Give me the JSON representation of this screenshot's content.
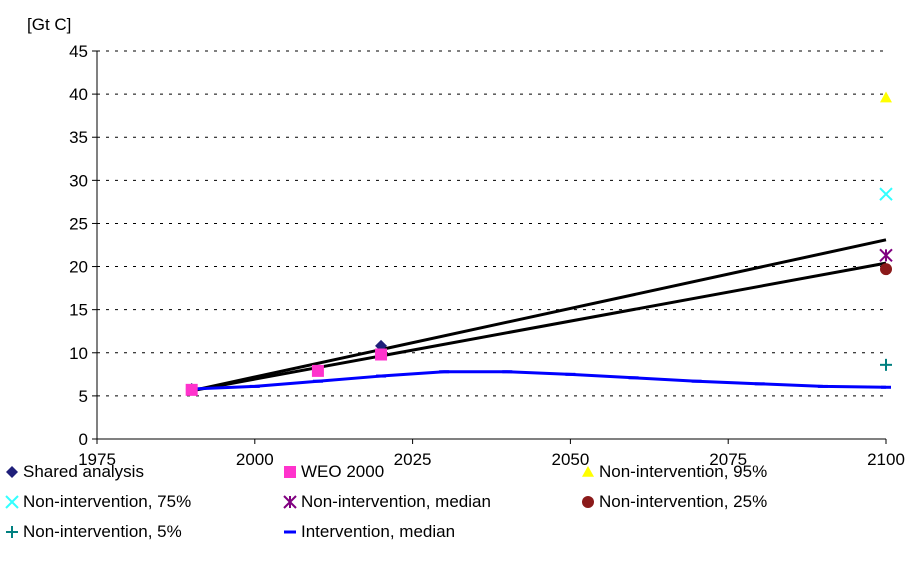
{
  "chart_data": {
    "type": "scatter",
    "ylabel": "[Gt C]",
    "xlim": [
      1975,
      2100
    ],
    "ylim": [
      0,
      45
    ],
    "x_ticks": [
      1975,
      2000,
      2025,
      2050,
      2075,
      2100
    ],
    "y_ticks": [
      0,
      5,
      10,
      15,
      20,
      25,
      30,
      35,
      40,
      45
    ],
    "grid": "horizontal dashed",
    "legend_position": "bottom",
    "series": [
      {
        "name": "Shared analysis",
        "kind": "markers",
        "marker": "diamond",
        "color": "#1f1f7a",
        "points": [
          [
            1990,
            5.8
          ],
          [
            2020,
            10.8
          ]
        ]
      },
      {
        "name": "WEO 2000",
        "kind": "markers",
        "marker": "square",
        "color": "#ff33cc",
        "points": [
          [
            1990,
            5.7
          ],
          [
            2010,
            7.9
          ],
          [
            2020,
            9.8
          ]
        ]
      },
      {
        "name": "Non-intervention, 95%",
        "kind": "markers",
        "marker": "triangle",
        "color": "#ffff00",
        "points": [
          [
            2100,
            39.6
          ]
        ]
      },
      {
        "name": "Non-intervention, 75%",
        "kind": "markers",
        "marker": "x",
        "color": "#33ffff",
        "points": [
          [
            2100,
            28.4
          ]
        ]
      },
      {
        "name": "Non-intervention, median",
        "kind": "markers",
        "marker": "asterisk",
        "color": "#800080",
        "points": [
          [
            2100,
            21.3
          ]
        ]
      },
      {
        "name": "Non-intervention, 25%",
        "kind": "markers",
        "marker": "circle",
        "color": "#8b1a1a",
        "points": [
          [
            2100,
            19.7
          ]
        ]
      },
      {
        "name": "Non-intervention, 5%",
        "kind": "markers",
        "marker": "plus",
        "color": "#008080",
        "points": [
          [
            2100,
            8.6
          ]
        ]
      },
      {
        "name": "Intervention, median",
        "kind": "line+dash",
        "marker": "dash",
        "color": "#0000ff",
        "points": [
          [
            1990,
            5.8
          ],
          [
            2000,
            6.1
          ],
          [
            2010,
            6.7
          ],
          [
            2020,
            7.3
          ],
          [
            2030,
            7.8
          ],
          [
            2040,
            7.8
          ],
          [
            2050,
            7.5
          ],
          [
            2060,
            7.1
          ],
          [
            2070,
            6.7
          ],
          [
            2080,
            6.4
          ],
          [
            2090,
            6.1
          ],
          [
            2100,
            6.0
          ]
        ]
      }
    ],
    "trend_lines": [
      {
        "color": "#000000",
        "points": [
          [
            1990,
            5.6
          ],
          [
            2100,
            23.1
          ]
        ]
      },
      {
        "color": "#000000",
        "points": [
          [
            1990,
            5.6
          ],
          [
            2100,
            20.4
          ]
        ]
      }
    ]
  },
  "legend": [
    {
      "label": "Shared analysis",
      "marker": "diamond",
      "color": "#1f1f7a"
    },
    {
      "label": "WEO 2000",
      "marker": "square",
      "color": "#ff33cc"
    },
    {
      "label": "Non-intervention, 95%",
      "marker": "triangle",
      "color": "#ffff00"
    },
    {
      "label": "Non-intervention, 75%",
      "marker": "x",
      "color": "#33ffff"
    },
    {
      "label": "Non-intervention, median",
      "marker": "asterisk",
      "color": "#800080"
    },
    {
      "label": "Non-intervention, 25%",
      "marker": "circle",
      "color": "#8b1a1a"
    },
    {
      "label": "Non-intervention, 5%",
      "marker": "plus",
      "color": "#008080"
    },
    {
      "label": "Intervention, median",
      "marker": "dash",
      "color": "#0000ff"
    }
  ]
}
